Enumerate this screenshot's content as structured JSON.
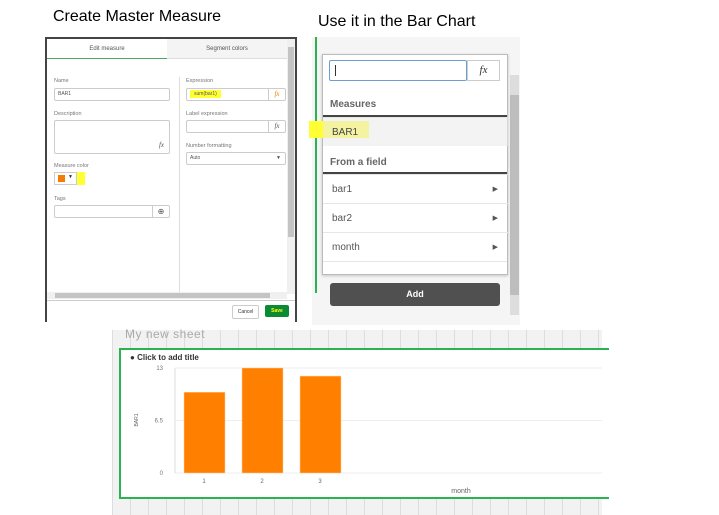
{
  "captions": {
    "left": "Create Master Measure",
    "right": "Use it in the Bar Chart"
  },
  "edit_dialog": {
    "tabs": [
      "Edit measure",
      "Segment colors"
    ],
    "name_label": "Name",
    "name_value": "BAR1",
    "description_label": "Description",
    "measure_color_label": "Measure color",
    "measure_color": "#f57c00",
    "tags_label": "Tags",
    "expression_label": "Expression",
    "expression_value": "sum(bar1)",
    "label_expression_label": "Label expression",
    "number_formatting_label": "Number formatting",
    "number_formatting_value": "Auto",
    "fx": "fx",
    "cancel": "Cancel",
    "save": "Save"
  },
  "picker": {
    "fx": "fx",
    "measures_header": "Measures",
    "measures": [
      "BAR1"
    ],
    "field_header": "From a field",
    "fields": [
      "bar1",
      "bar2",
      "month"
    ],
    "add": "Add"
  },
  "sheet": {
    "title": "My new sheet",
    "chart_title": "Click to add title"
  },
  "chart_data": {
    "type": "bar",
    "categories": [
      "1",
      "2",
      "3"
    ],
    "values": [
      10,
      13,
      12
    ],
    "xlabel": "month",
    "ylabel": "BAR1",
    "ylim": [
      0,
      13
    ],
    "yticks": [
      "0",
      "6.5",
      "13"
    ],
    "color": "#ff7f00",
    "grid": true
  },
  "colors": {
    "accent": "#009845",
    "highlight": "#ffff33"
  }
}
